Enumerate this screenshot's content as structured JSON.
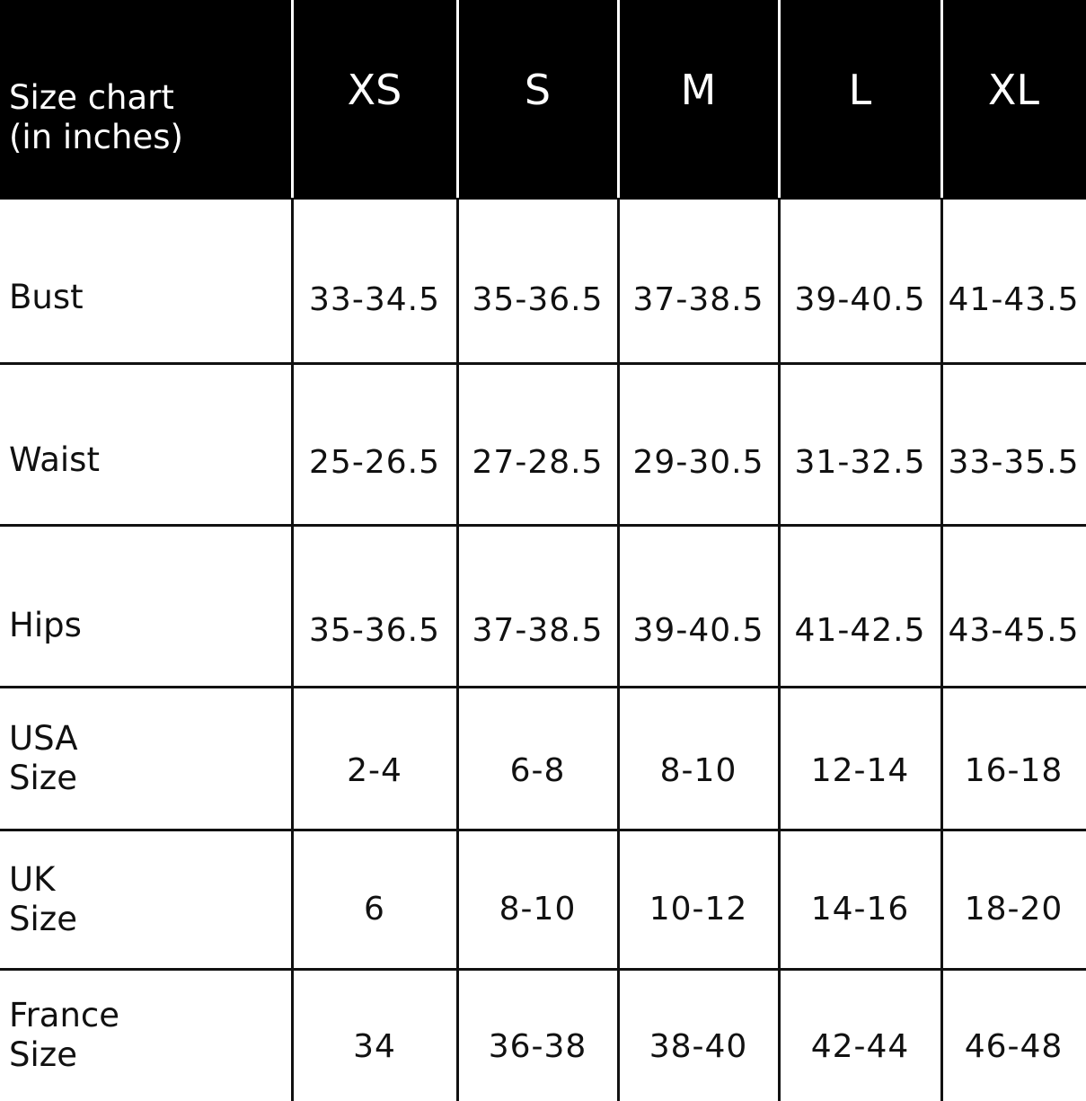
{
  "table": {
    "corner_label": [
      "Size chart",
      "(in inches)"
    ],
    "columns": [
      "XS",
      "S",
      "M",
      "L",
      "XL"
    ],
    "rows": [
      {
        "label": [
          "Bust"
        ],
        "values": [
          "33-34.5",
          "35-36.5",
          "37-38.5",
          "39-40.5",
          "41-43.5"
        ]
      },
      {
        "label": [
          "Waist"
        ],
        "values": [
          "25-26.5",
          "27-28.5",
          "29-30.5",
          "31-32.5",
          "33-35.5"
        ]
      },
      {
        "label": [
          "Hips"
        ],
        "values": [
          "35-36.5",
          "37-38.5",
          "39-40.5",
          "41-42.5",
          "43-45.5"
        ]
      },
      {
        "label": [
          "USA",
          "Size"
        ],
        "values": [
          "2-4",
          "6-8",
          "8-10",
          "12-14",
          "16-18"
        ]
      },
      {
        "label": [
          "UK",
          "Size"
        ],
        "values": [
          "6",
          "8-10",
          "10-12",
          "14-16",
          "18-20"
        ]
      },
      {
        "label": [
          "France",
          "Size"
        ],
        "values": [
          "34",
          "36-38",
          "38-40",
          "42-44",
          "46-48"
        ]
      }
    ],
    "colors": {
      "header_bg": "#000000",
      "header_text": "#ffffff",
      "grid": "#111111"
    }
  }
}
